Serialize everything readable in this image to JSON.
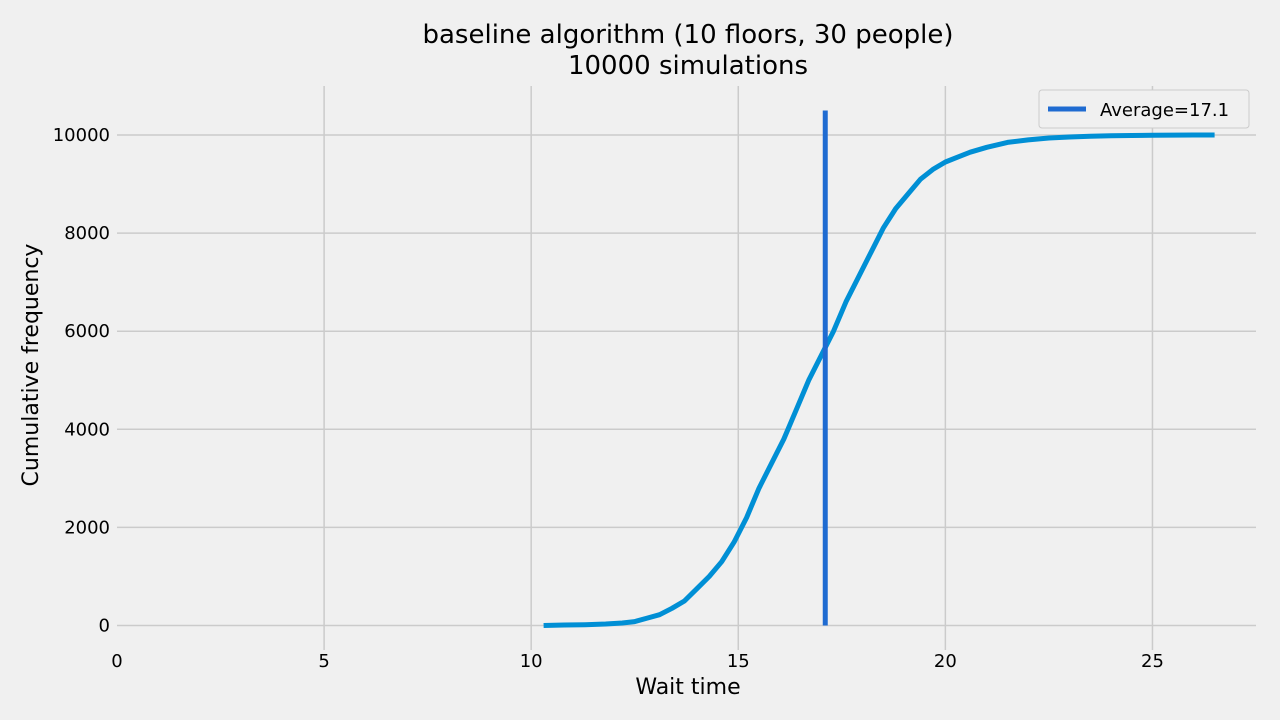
{
  "chart_data": {
    "type": "line",
    "title": "baseline algorithm (10 floors, 30 people)",
    "subtitle": "10000 simulations",
    "xlabel": "Wait time",
    "ylabel": "Cumulative frequency",
    "xlim": [
      0,
      27.5
    ],
    "ylim": [
      -500,
      11000
    ],
    "xticks": [
      0,
      5,
      10,
      15,
      20,
      25
    ],
    "xtick_labels": [
      "0",
      "5",
      "10",
      "15",
      "20",
      "25"
    ],
    "yticks": [
      0,
      2000,
      4000,
      6000,
      8000,
      10000
    ],
    "ytick_labels": [
      "0",
      "2000",
      "4000",
      "6000",
      "8000",
      "10000"
    ],
    "grid": true,
    "legend_position": "top-right",
    "series": [
      {
        "kind": "cumulative-line",
        "color": "#008fd5",
        "x": [
          10.3,
          10.8,
          11.3,
          11.8,
          12.2,
          12.5,
          12.8,
          13.1,
          13.4,
          13.7,
          14.0,
          14.3,
          14.6,
          14.9,
          15.2,
          15.5,
          15.8,
          16.1,
          16.4,
          16.7,
          17.0,
          17.3,
          17.6,
          17.9,
          18.2,
          18.5,
          18.8,
          19.1,
          19.4,
          19.7,
          20.0,
          20.3,
          20.6,
          21.0,
          21.5,
          22.0,
          22.5,
          23.0,
          23.5,
          24.0,
          24.5,
          25.0,
          25.5,
          26.0,
          26.5
        ],
        "y": [
          0,
          10,
          15,
          30,
          50,
          80,
          150,
          220,
          350,
          500,
          750,
          1000,
          1300,
          1700,
          2200,
          2800,
          3300,
          3800,
          4400,
          5000,
          5500,
          6000,
          6600,
          7100,
          7600,
          8100,
          8500,
          8800,
          9100,
          9300,
          9450,
          9550,
          9650,
          9750,
          9850,
          9900,
          9940,
          9960,
          9975,
          9985,
          9990,
          9995,
          9998,
          10000,
          10000
        ]
      },
      {
        "kind": "vertical-line",
        "name": "Average=17.1",
        "color": "#1f6bd1",
        "x_value": 17.1,
        "y_range": [
          0,
          10500
        ]
      }
    ]
  },
  "colors": {
    "background": "#f0f0f0",
    "grid": "#cbcbcb"
  }
}
